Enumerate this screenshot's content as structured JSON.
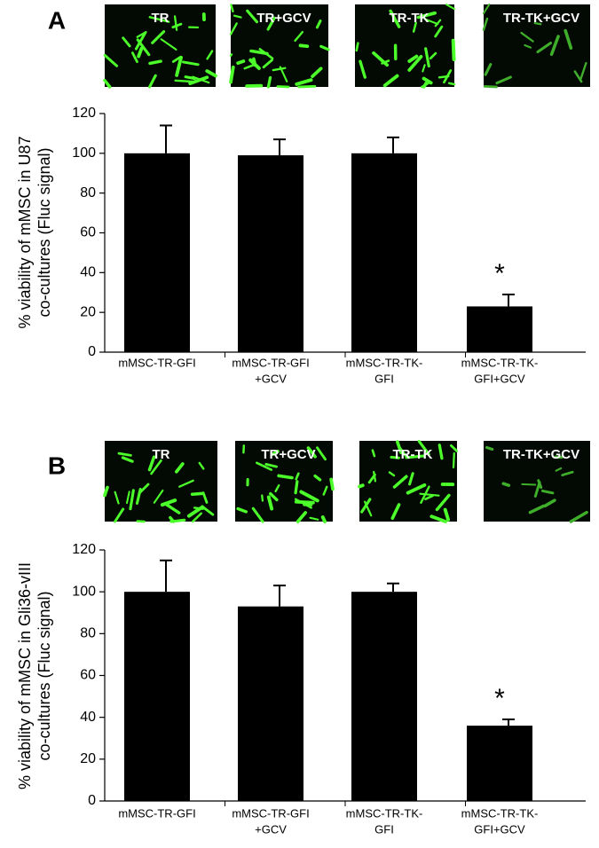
{
  "chart_data": [
    {
      "type": "bar",
      "panel": "A",
      "image_labels": [
        "TR",
        "TR+GCV",
        "TR-TK",
        "TR-TK+GCV"
      ],
      "ylabel": [
        "% viability of mMSC in U87",
        "co-cultures (Fluc signal)"
      ],
      "categories": [
        [
          "mMSC-TR-GFI"
        ],
        [
          "mMSC-TR-GFI",
          "+GCV"
        ],
        [
          "mMSC-TR-TK-",
          "GFI"
        ],
        [
          "mMSC-TR-TK-",
          "GFI+GCV"
        ]
      ],
      "values": [
        100,
        99,
        100,
        23
      ],
      "errors": [
        14,
        8,
        8,
        6
      ],
      "color": "#000000",
      "annotation": "*",
      "ylim": [
        0,
        120
      ],
      "yticks": [
        0,
        20,
        40,
        60,
        80,
        100,
        120
      ]
    },
    {
      "type": "bar",
      "panel": "B",
      "image_labels": [
        "TR",
        "TR+GCV",
        "TR-TK",
        "TR-TK+GCV"
      ],
      "ylabel": [
        "% viability of mMSC in Gli36-vIII",
        "co-cultures (Fluc signal)"
      ],
      "categories": [
        [
          "mMSC-TR-GFI"
        ],
        [
          "mMSC-TR-GFI",
          "+GCV"
        ],
        [
          "mMSC-TR-TK-",
          "GFI"
        ],
        [
          "mMSC-TR-TK-",
          "GFI+GCV"
        ]
      ],
      "values": [
        100,
        93,
        100,
        36
      ],
      "errors": [
        15,
        10,
        4,
        3
      ],
      "color": "#000000",
      "annotation": "*",
      "ylim": [
        0,
        120
      ],
      "yticks": [
        0,
        20,
        40,
        60,
        80,
        100,
        120
      ]
    }
  ]
}
